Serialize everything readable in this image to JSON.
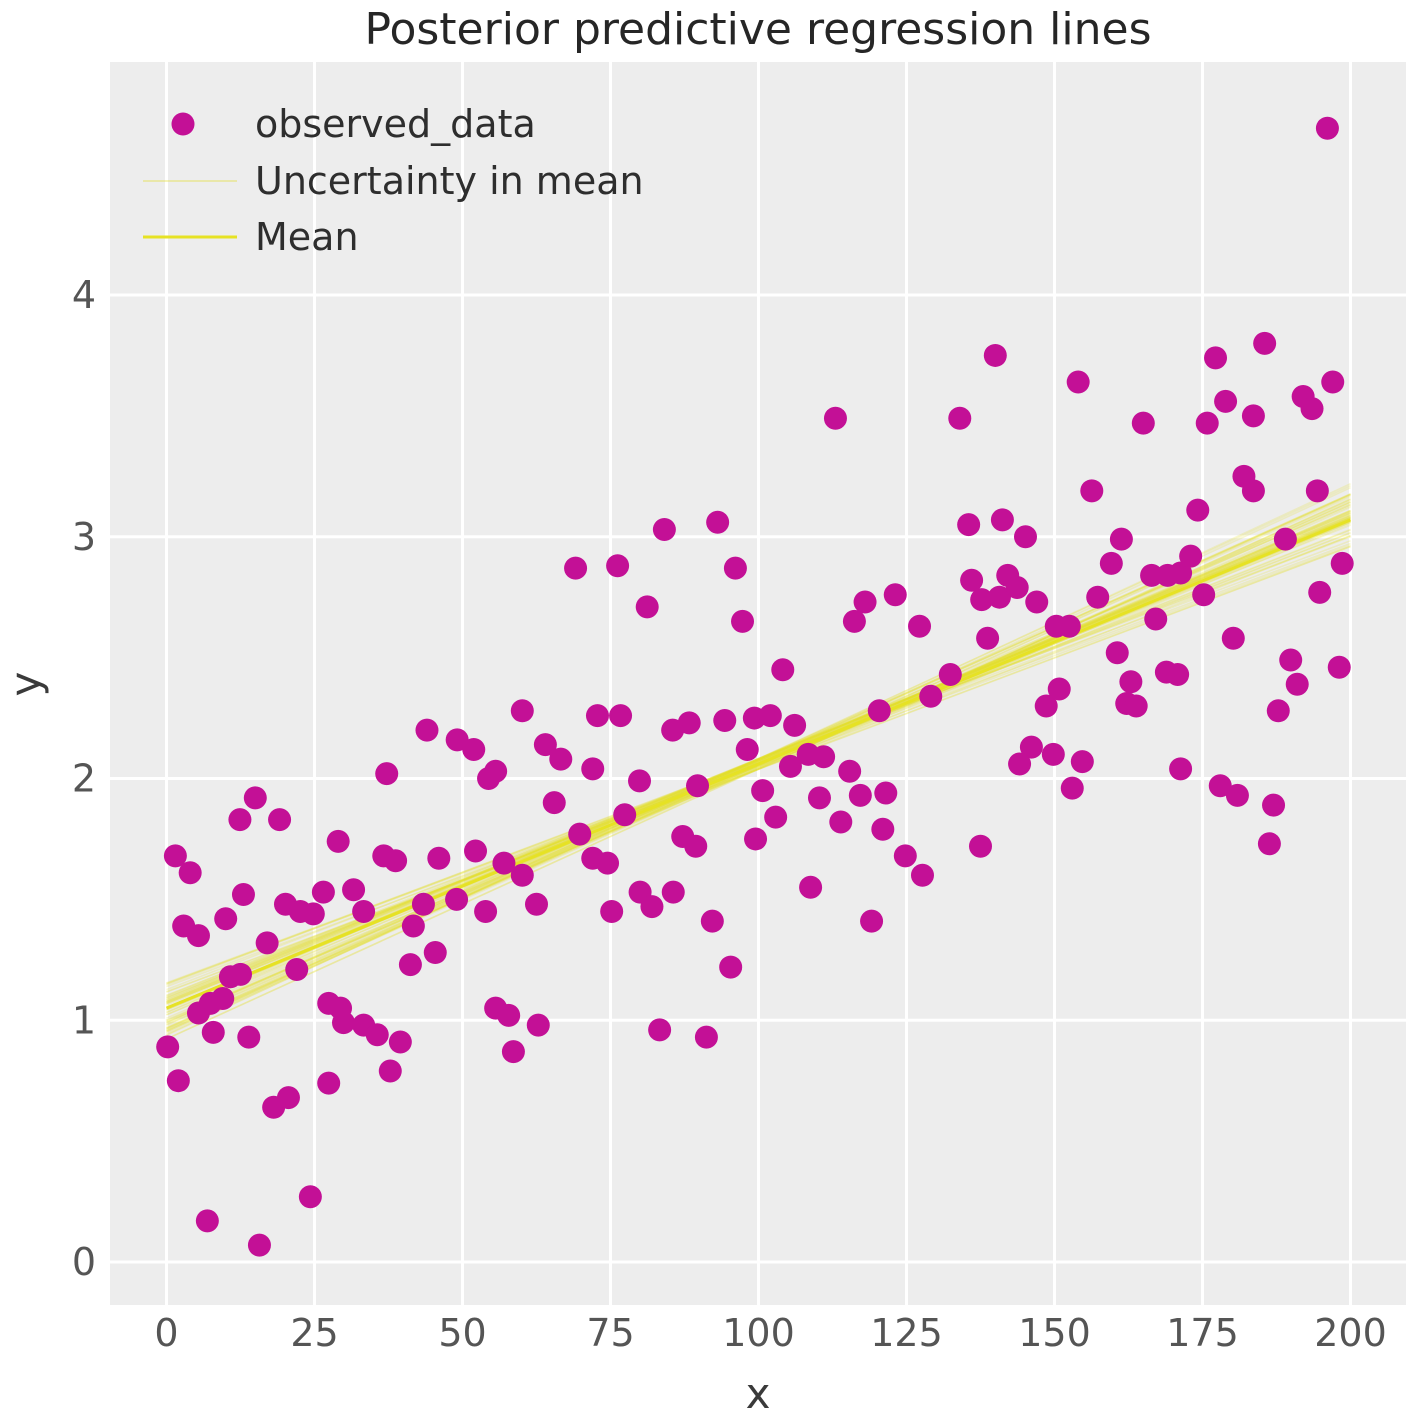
{
  "title": "Posterior predictive regression lines",
  "axes": {
    "xlabel": "x",
    "ylabel": "y",
    "x_ticks": [
      0,
      25,
      50,
      75,
      100,
      125,
      150,
      175,
      200
    ],
    "y_ticks": [
      0,
      1,
      2,
      3,
      4
    ],
    "xlim": [
      -9.5,
      209.5
    ],
    "ylim": [
      -0.18,
      4.96
    ],
    "grid": true
  },
  "legend": {
    "position": "upper left",
    "items": [
      {
        "label": "observed_data",
        "type": "marker"
      },
      {
        "label": "Uncertainty in mean",
        "type": "line-faint"
      },
      {
        "label": "Mean",
        "type": "line"
      }
    ]
  },
  "colors": {
    "figure_background": "#ffffff",
    "axes_background": "#ededed",
    "grid": "#ffffff",
    "marker": "#c31096",
    "mean_line": "#e6e224",
    "uncertainty_line": "#e3de2a",
    "title_text": "#262626",
    "tick_text": "#555555",
    "label_text": "#3a3a3a"
  },
  "chart_data": {
    "type": "scatter",
    "title": "Posterior predictive regression lines",
    "xlabel": "x",
    "ylabel": "y",
    "xlim": [
      -9.5,
      209.5
    ],
    "ylim": [
      -0.18,
      4.96
    ],
    "grid": true,
    "legend_position": "upper left",
    "series": [
      {
        "name": "observed_data",
        "type": "scatter",
        "points": [
          [
            0.2,
            0.89
          ],
          [
            2.0,
            0.75
          ],
          [
            1.5,
            1.68
          ],
          [
            4.0,
            1.61
          ],
          [
            2.9,
            1.39
          ],
          [
            5.4,
            1.35
          ],
          [
            5.4,
            1.03
          ],
          [
            7.4,
            1.07
          ],
          [
            9.5,
            1.09
          ],
          [
            7.9,
            0.95
          ],
          [
            13.9,
            0.93
          ],
          [
            10.8,
            1.18
          ],
          [
            12.5,
            1.19
          ],
          [
            10.0,
            1.42
          ],
          [
            13.0,
            1.52
          ],
          [
            12.4,
            1.83
          ],
          [
            15.0,
            1.92
          ],
          [
            19.1,
            1.83
          ],
          [
            17.0,
            1.32
          ],
          [
            20.1,
            1.48
          ],
          [
            22.6,
            1.45
          ],
          [
            24.8,
            1.44
          ],
          [
            22.0,
            1.21
          ],
          [
            6.9,
            0.17
          ],
          [
            15.7,
            0.07
          ],
          [
            24.3,
            0.27
          ],
          [
            18.1,
            0.64
          ],
          [
            20.6,
            0.68
          ],
          [
            27.4,
            0.74
          ],
          [
            26.5,
            1.53
          ],
          [
            29.0,
            1.74
          ],
          [
            27.4,
            1.07
          ],
          [
            29.4,
            1.05
          ],
          [
            29.9,
            0.99
          ],
          [
            31.6,
            1.54
          ],
          [
            33.3,
            1.45
          ],
          [
            33.3,
            0.98
          ],
          [
            35.6,
            0.94
          ],
          [
            39.5,
            0.91
          ],
          [
            37.8,
            0.79
          ],
          [
            36.7,
            1.68
          ],
          [
            38.7,
            1.66
          ],
          [
            37.2,
            2.02
          ],
          [
            41.7,
            1.39
          ],
          [
            43.4,
            1.48
          ],
          [
            41.2,
            1.23
          ],
          [
            45.4,
            1.28
          ],
          [
            44.0,
            2.2
          ],
          [
            49.1,
            2.16
          ],
          [
            51.9,
            2.12
          ],
          [
            46.0,
            1.67
          ],
          [
            49.0,
            1.5
          ],
          [
            52.2,
            1.7
          ],
          [
            53.9,
            1.45
          ],
          [
            55.6,
            1.05
          ],
          [
            57.8,
            1.02
          ],
          [
            58.6,
            0.87
          ],
          [
            62.8,
            0.98
          ],
          [
            54.4,
            2.0
          ],
          [
            55.6,
            2.03
          ],
          [
            57.0,
            1.65
          ],
          [
            60.1,
            1.6
          ],
          [
            60.1,
            2.28
          ],
          [
            62.5,
            1.48
          ],
          [
            64.0,
            2.14
          ],
          [
            66.6,
            2.08
          ],
          [
            65.5,
            1.9
          ],
          [
            69.8,
            1.77
          ],
          [
            72.0,
            1.67
          ],
          [
            74.5,
            1.65
          ],
          [
            72.0,
            2.04
          ],
          [
            72.8,
            2.26
          ],
          [
            76.7,
            2.26
          ],
          [
            77.4,
            1.85
          ],
          [
            79.9,
            1.99
          ],
          [
            75.2,
            1.45
          ],
          [
            80.0,
            1.53
          ],
          [
            82.0,
            1.47
          ],
          [
            85.6,
            1.53
          ],
          [
            83.3,
            0.96
          ],
          [
            91.2,
            0.93
          ],
          [
            92.2,
            1.41
          ],
          [
            95.3,
            1.22
          ],
          [
            87.2,
            1.76
          ],
          [
            89.4,
            1.72
          ],
          [
            89.7,
            1.97
          ],
          [
            85.5,
            2.2
          ],
          [
            88.3,
            2.23
          ],
          [
            94.3,
            2.24
          ],
          [
            98.1,
            2.12
          ],
          [
            99.3,
            2.25
          ],
          [
            102.0,
            2.26
          ],
          [
            99.5,
            1.75
          ],
          [
            100.7,
            1.95
          ],
          [
            102.9,
            1.84
          ],
          [
            84.1,
            3.03
          ],
          [
            93.1,
            3.06
          ],
          [
            69.1,
            2.87
          ],
          [
            76.2,
            2.88
          ],
          [
            81.2,
            2.71
          ],
          [
            96.1,
            2.87
          ],
          [
            97.3,
            2.65
          ],
          [
            104.1,
            2.45
          ],
          [
            105.4,
            2.05
          ],
          [
            108.4,
            2.1
          ],
          [
            111.0,
            2.09
          ],
          [
            106.1,
            2.22
          ],
          [
            108.8,
            1.55
          ],
          [
            110.3,
            1.92
          ],
          [
            113.9,
            1.82
          ],
          [
            115.4,
            2.03
          ],
          [
            117.2,
            1.93
          ],
          [
            119.1,
            1.41
          ],
          [
            121.5,
            1.94
          ],
          [
            121.0,
            1.79
          ],
          [
            124.8,
            1.68
          ],
          [
            127.7,
            1.6
          ],
          [
            113.0,
            3.49
          ],
          [
            116.2,
            2.65
          ],
          [
            118.0,
            2.73
          ],
          [
            123.1,
            2.76
          ],
          [
            120.4,
            2.28
          ],
          [
            127.2,
            2.63
          ],
          [
            129.1,
            2.34
          ],
          [
            132.4,
            2.43
          ],
          [
            134.0,
            3.49
          ],
          [
            135.5,
            3.05
          ],
          [
            137.5,
            1.72
          ],
          [
            136.0,
            2.82
          ],
          [
            137.7,
            2.74
          ],
          [
            140.7,
            2.75
          ],
          [
            142.1,
            2.84
          ],
          [
            143.7,
            2.79
          ],
          [
            141.2,
            3.07
          ],
          [
            145.1,
            3.0
          ],
          [
            138.7,
            2.58
          ],
          [
            140.0,
            3.75
          ],
          [
            146.1,
            2.13
          ],
          [
            144.1,
            2.06
          ],
          [
            149.8,
            2.1
          ],
          [
            148.6,
            2.3
          ],
          [
            150.8,
            2.37
          ],
          [
            150.3,
            2.63
          ],
          [
            152.5,
            2.63
          ],
          [
            147.0,
            2.73
          ],
          [
            153.0,
            1.96
          ],
          [
            154.7,
            2.07
          ],
          [
            156.3,
            3.19
          ],
          [
            154.0,
            3.64
          ],
          [
            157.3,
            2.75
          ],
          [
            159.6,
            2.89
          ],
          [
            161.3,
            2.99
          ],
          [
            160.6,
            2.52
          ],
          [
            162.9,
            2.4
          ],
          [
            162.2,
            2.31
          ],
          [
            163.8,
            2.3
          ],
          [
            165.0,
            3.47
          ],
          [
            166.4,
            2.84
          ],
          [
            169.1,
            2.84
          ],
          [
            167.1,
            2.66
          ],
          [
            168.9,
            2.44
          ],
          [
            170.8,
            2.43
          ],
          [
            171.3,
            2.85
          ],
          [
            173.0,
            2.92
          ],
          [
            174.2,
            3.11
          ],
          [
            171.3,
            2.04
          ],
          [
            175.2,
            2.76
          ],
          [
            177.2,
            3.74
          ],
          [
            175.8,
            3.47
          ],
          [
            178.9,
            3.56
          ],
          [
            178.0,
            1.97
          ],
          [
            180.9,
            1.93
          ],
          [
            180.2,
            2.58
          ],
          [
            182.0,
            3.25
          ],
          [
            183.6,
            3.5
          ],
          [
            185.5,
            3.8
          ],
          [
            186.3,
            1.73
          ],
          [
            187.0,
            1.89
          ],
          [
            187.8,
            2.28
          ],
          [
            183.6,
            3.19
          ],
          [
            189.0,
            2.99
          ],
          [
            189.9,
            2.49
          ],
          [
            191.0,
            2.39
          ],
          [
            192.0,
            3.58
          ],
          [
            193.5,
            3.53
          ],
          [
            194.4,
            3.19
          ],
          [
            194.8,
            2.77
          ],
          [
            196.1,
            4.69
          ],
          [
            197.0,
            3.64
          ],
          [
            198.6,
            2.89
          ],
          [
            198.1,
            2.46
          ]
        ]
      },
      {
        "name": "Mean",
        "type": "line",
        "x": [
          0,
          200
        ],
        "y": [
          1.05,
          3.07
        ]
      },
      {
        "name": "Uncertainty in mean",
        "type": "line-ensemble",
        "n_lines": 60,
        "x_range": [
          0,
          200
        ],
        "intercept_range": [
          0.92,
          1.16
        ],
        "endpoint_range": [
          2.91,
          3.25
        ]
      }
    ]
  }
}
